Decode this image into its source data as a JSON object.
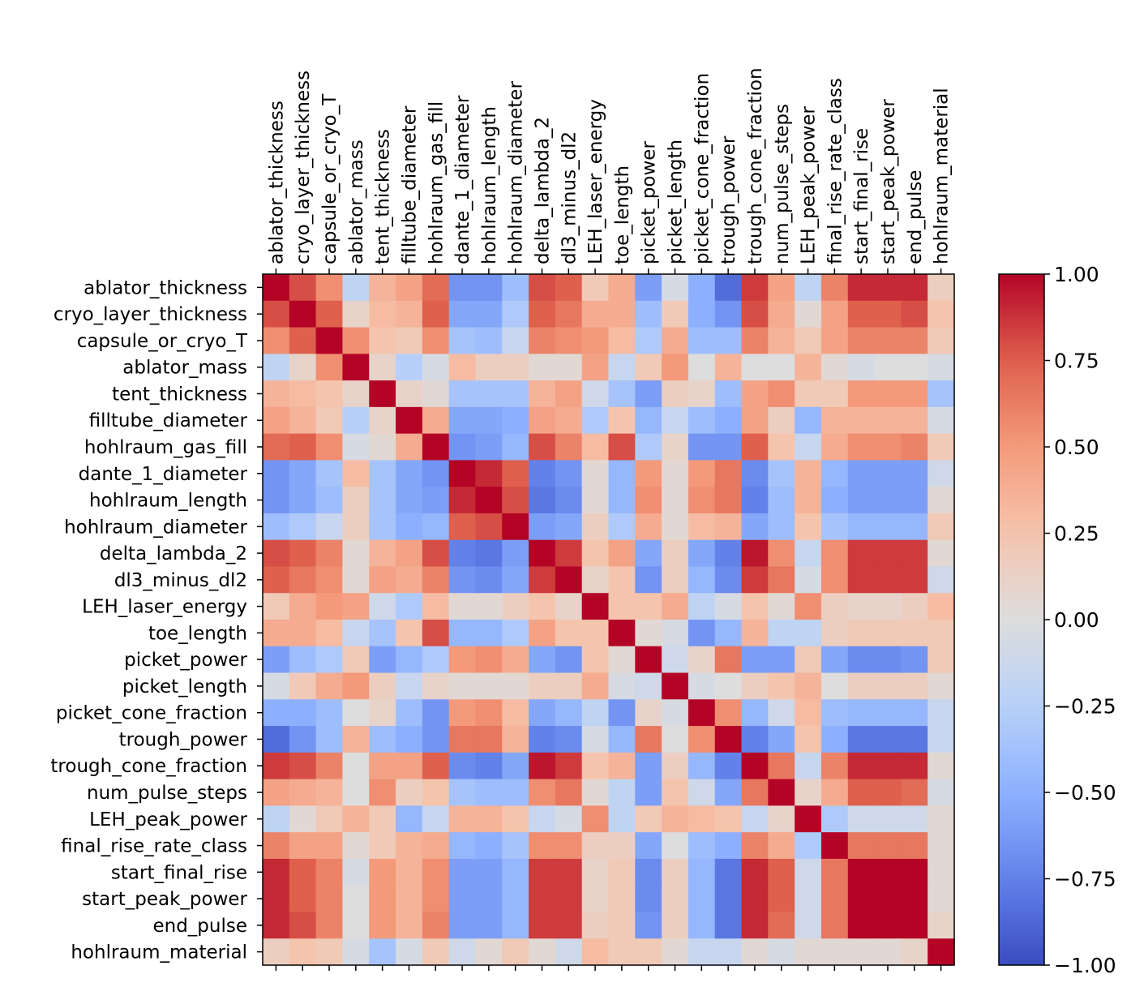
{
  "chart_data": {
    "type": "heatmap",
    "title": "",
    "xlabel": "",
    "ylabel": "",
    "labels": [
      "ablator_thickness",
      "cryo_layer_thickness",
      "capsule_or_cryo_T",
      "ablator_mass",
      "tent_thickness",
      "filltube_diameter",
      "hohlraum_gas_fill",
      "dante_1_diameter",
      "hohlraum_length",
      "hohlraum_diameter",
      "delta_lambda_2",
      "dl3_minus_dl2",
      "LEH_laser_energy",
      "toe_length",
      "picket_power",
      "picket_length",
      "picket_cone_fraction",
      "trough_power",
      "trough_cone_fraction",
      "num_pulse_steps",
      "LEH_peak_power",
      "final_rise_rate_class",
      "start_final_rise",
      "start_peak_power",
      "end_pulse",
      "hohlraum_material"
    ],
    "x_tick_position": "top",
    "colormap": "coolwarm",
    "vmin": -1.0,
    "vmax": 1.0,
    "colorbar_ticks": [
      "1.00",
      "0.75",
      "0.50",
      "0.25",
      "0.00",
      "−0.25",
      "−0.50",
      "−0.75",
      "−1.00"
    ],
    "colorbar_tick_values": [
      1.0,
      0.75,
      0.5,
      0.25,
      0.0,
      -0.25,
      -0.5,
      -0.75,
      -1.0
    ],
    "values": [
      [
        1.0,
        0.8,
        0.55,
        -0.2,
        0.35,
        0.45,
        0.7,
        -0.65,
        -0.65,
        -0.4,
        0.8,
        0.75,
        0.2,
        0.4,
        -0.6,
        -0.05,
        -0.5,
        -0.85,
        0.85,
        0.45,
        -0.2,
        0.6,
        0.9,
        0.9,
        0.9,
        0.15
      ],
      [
        0.8,
        1.0,
        0.75,
        0.1,
        0.3,
        0.35,
        0.75,
        -0.55,
        -0.55,
        -0.3,
        0.75,
        0.65,
        0.4,
        0.4,
        -0.4,
        0.2,
        -0.5,
        -0.65,
        0.8,
        0.4,
        0.05,
        0.45,
        0.75,
        0.75,
        0.8,
        0.25
      ],
      [
        0.55,
        0.75,
        1.0,
        0.55,
        0.25,
        0.2,
        0.55,
        -0.35,
        -0.4,
        -0.15,
        0.6,
        0.55,
        0.5,
        0.3,
        -0.3,
        0.4,
        -0.4,
        -0.4,
        0.6,
        0.35,
        0.2,
        0.45,
        0.6,
        0.6,
        0.6,
        0.2
      ],
      [
        -0.2,
        0.1,
        0.55,
        1.0,
        0.1,
        -0.25,
        -0.05,
        0.3,
        0.15,
        0.15,
        0.05,
        0.05,
        0.45,
        -0.15,
        0.2,
        0.5,
        0.0,
        0.35,
        0.0,
        0.0,
        0.35,
        0.05,
        -0.05,
        0.0,
        0.0,
        -0.05
      ],
      [
        0.35,
        0.3,
        0.25,
        0.1,
        1.0,
        0.1,
        0.05,
        -0.35,
        -0.35,
        -0.35,
        0.35,
        0.45,
        -0.1,
        -0.35,
        -0.6,
        0.15,
        0.1,
        -0.4,
        0.45,
        0.55,
        0.2,
        0.2,
        0.5,
        0.5,
        0.5,
        -0.35
      ],
      [
        0.45,
        0.35,
        0.2,
        -0.25,
        0.1,
        1.0,
        0.4,
        -0.55,
        -0.55,
        -0.5,
        0.45,
        0.4,
        -0.3,
        0.25,
        -0.45,
        -0.15,
        -0.4,
        -0.5,
        0.45,
        0.15,
        -0.45,
        0.35,
        0.35,
        0.35,
        0.35,
        -0.05
      ],
      [
        0.7,
        0.75,
        0.55,
        -0.05,
        0.05,
        0.4,
        1.0,
        -0.65,
        -0.6,
        -0.45,
        0.8,
        0.6,
        0.3,
        0.8,
        -0.3,
        0.1,
        -0.65,
        -0.65,
        0.75,
        0.25,
        -0.15,
        0.4,
        0.55,
        0.55,
        0.6,
        0.2
      ],
      [
        -0.65,
        -0.55,
        -0.35,
        0.3,
        -0.35,
        -0.55,
        -0.65,
        1.0,
        0.9,
        0.75,
        -0.75,
        -0.65,
        0.05,
        -0.45,
        0.5,
        0.05,
        0.5,
        0.65,
        -0.7,
        -0.35,
        0.35,
        -0.45,
        -0.6,
        -0.6,
        -0.6,
        -0.1
      ],
      [
        -0.65,
        -0.55,
        -0.4,
        0.15,
        -0.35,
        -0.55,
        -0.6,
        0.9,
        1.0,
        0.8,
        -0.8,
        -0.7,
        0.05,
        -0.45,
        0.55,
        0.05,
        0.55,
        0.65,
        -0.75,
        -0.4,
        0.35,
        -0.5,
        -0.6,
        -0.6,
        -0.6,
        0.05
      ],
      [
        -0.4,
        -0.3,
        -0.15,
        0.15,
        -0.35,
        -0.5,
        -0.45,
        0.75,
        0.8,
        1.0,
        -0.6,
        -0.55,
        0.15,
        -0.3,
        0.4,
        0.05,
        0.3,
        0.35,
        -0.55,
        -0.4,
        0.25,
        -0.35,
        -0.45,
        -0.45,
        -0.45,
        0.2
      ],
      [
        0.8,
        0.75,
        0.6,
        0.05,
        0.35,
        0.45,
        0.8,
        -0.75,
        -0.8,
        -0.6,
        1.0,
        0.85,
        0.25,
        0.45,
        -0.55,
        0.15,
        -0.55,
        -0.75,
        0.95,
        0.55,
        -0.15,
        0.55,
        0.85,
        0.85,
        0.85,
        0.05
      ],
      [
        0.75,
        0.65,
        0.55,
        0.05,
        0.45,
        0.4,
        0.6,
        -0.65,
        -0.7,
        -0.55,
        0.85,
        1.0,
        0.1,
        0.25,
        -0.65,
        0.15,
        -0.45,
        -0.7,
        0.85,
        0.65,
        -0.05,
        0.55,
        0.85,
        0.85,
        0.85,
        -0.1
      ],
      [
        0.2,
        0.4,
        0.5,
        0.45,
        -0.1,
        -0.3,
        0.3,
        0.05,
        0.05,
        0.15,
        0.25,
        0.1,
        1.0,
        0.25,
        0.25,
        0.4,
        -0.2,
        -0.05,
        0.25,
        0.05,
        0.55,
        0.15,
        0.1,
        0.1,
        0.15,
        0.3
      ],
      [
        0.4,
        0.4,
        0.3,
        -0.15,
        -0.35,
        0.25,
        0.8,
        -0.45,
        -0.45,
        -0.3,
        0.45,
        0.25,
        0.25,
        1.0,
        0.05,
        -0.05,
        -0.65,
        -0.45,
        0.35,
        -0.2,
        -0.2,
        0.15,
        0.2,
        0.2,
        0.2,
        0.2
      ],
      [
        -0.6,
        -0.4,
        -0.3,
        0.2,
        -0.6,
        -0.45,
        -0.3,
        0.5,
        0.55,
        0.4,
        -0.55,
        -0.65,
        0.25,
        0.05,
        1.0,
        -0.1,
        0.1,
        0.65,
        -0.6,
        -0.6,
        0.2,
        -0.55,
        -0.7,
        -0.7,
        -0.65,
        0.2
      ],
      [
        -0.05,
        0.2,
        0.4,
        0.5,
        0.15,
        -0.15,
        0.1,
        0.05,
        0.05,
        0.05,
        0.15,
        0.15,
        0.4,
        -0.05,
        -0.1,
        1.0,
        -0.05,
        0.0,
        0.15,
        0.25,
        0.35,
        0.0,
        0.15,
        0.15,
        0.15,
        0.05
      ],
      [
        -0.5,
        -0.5,
        -0.4,
        0.0,
        0.1,
        -0.4,
        -0.65,
        0.5,
        0.55,
        0.3,
        -0.55,
        -0.45,
        -0.2,
        -0.65,
        0.1,
        -0.05,
        1.0,
        0.55,
        -0.45,
        -0.1,
        0.3,
        -0.4,
        -0.45,
        -0.45,
        -0.45,
        -0.15
      ],
      [
        -0.85,
        -0.65,
        -0.4,
        0.35,
        -0.4,
        -0.5,
        -0.65,
        0.65,
        0.65,
        0.35,
        -0.75,
        -0.7,
        -0.05,
        -0.45,
        0.65,
        0.0,
        0.55,
        1.0,
        -0.75,
        -0.55,
        0.25,
        -0.5,
        -0.8,
        -0.8,
        -0.8,
        -0.15
      ],
      [
        0.85,
        0.8,
        0.6,
        0.0,
        0.45,
        0.45,
        0.75,
        -0.7,
        -0.75,
        -0.55,
        0.95,
        0.85,
        0.25,
        0.35,
        -0.6,
        0.15,
        -0.45,
        -0.75,
        1.0,
        0.65,
        -0.15,
        0.6,
        0.9,
        0.9,
        0.9,
        0.05
      ],
      [
        0.45,
        0.4,
        0.35,
        0.0,
        0.55,
        0.15,
        0.25,
        -0.35,
        -0.4,
        -0.4,
        0.55,
        0.65,
        0.05,
        -0.2,
        -0.6,
        0.25,
        -0.1,
        -0.55,
        0.65,
        1.0,
        0.1,
        0.4,
        0.75,
        0.75,
        0.7,
        -0.05
      ],
      [
        -0.2,
        0.05,
        0.2,
        0.35,
        0.2,
        -0.45,
        -0.15,
        0.35,
        0.35,
        0.25,
        -0.15,
        -0.05,
        0.55,
        -0.2,
        0.2,
        0.35,
        0.3,
        0.25,
        -0.15,
        0.1,
        1.0,
        -0.3,
        -0.1,
        -0.1,
        -0.1,
        0.05
      ],
      [
        0.6,
        0.45,
        0.45,
        0.05,
        0.2,
        0.35,
        0.4,
        -0.45,
        -0.5,
        -0.35,
        0.55,
        0.55,
        0.15,
        0.15,
        -0.55,
        0.0,
        -0.4,
        -0.5,
        0.6,
        0.4,
        -0.3,
        1.0,
        0.65,
        0.65,
        0.65,
        0.05
      ],
      [
        0.9,
        0.75,
        0.6,
        -0.05,
        0.5,
        0.35,
        0.55,
        -0.6,
        -0.6,
        -0.45,
        0.85,
        0.85,
        0.1,
        0.2,
        -0.7,
        0.15,
        -0.45,
        -0.8,
        0.9,
        0.75,
        -0.1,
        0.65,
        1.0,
        1.0,
        1.0,
        0.05
      ],
      [
        0.9,
        0.75,
        0.6,
        0.0,
        0.5,
        0.35,
        0.55,
        -0.6,
        -0.6,
        -0.45,
        0.85,
        0.85,
        0.1,
        0.2,
        -0.7,
        0.15,
        -0.45,
        -0.8,
        0.9,
        0.75,
        -0.1,
        0.65,
        1.0,
        1.0,
        1.0,
        0.05
      ],
      [
        0.9,
        0.8,
        0.6,
        0.0,
        0.5,
        0.35,
        0.6,
        -0.6,
        -0.6,
        -0.45,
        0.85,
        0.85,
        0.15,
        0.2,
        -0.65,
        0.15,
        -0.45,
        -0.8,
        0.9,
        0.7,
        -0.1,
        0.65,
        1.0,
        1.0,
        1.0,
        0.1
      ],
      [
        0.15,
        0.25,
        0.2,
        -0.05,
        -0.35,
        -0.05,
        0.2,
        -0.1,
        0.05,
        0.2,
        0.05,
        -0.1,
        0.3,
        0.2,
        0.2,
        0.05,
        -0.15,
        -0.15,
        0.05,
        -0.05,
        0.05,
        0.05,
        0.05,
        0.05,
        0.1,
        1.0
      ]
    ]
  }
}
